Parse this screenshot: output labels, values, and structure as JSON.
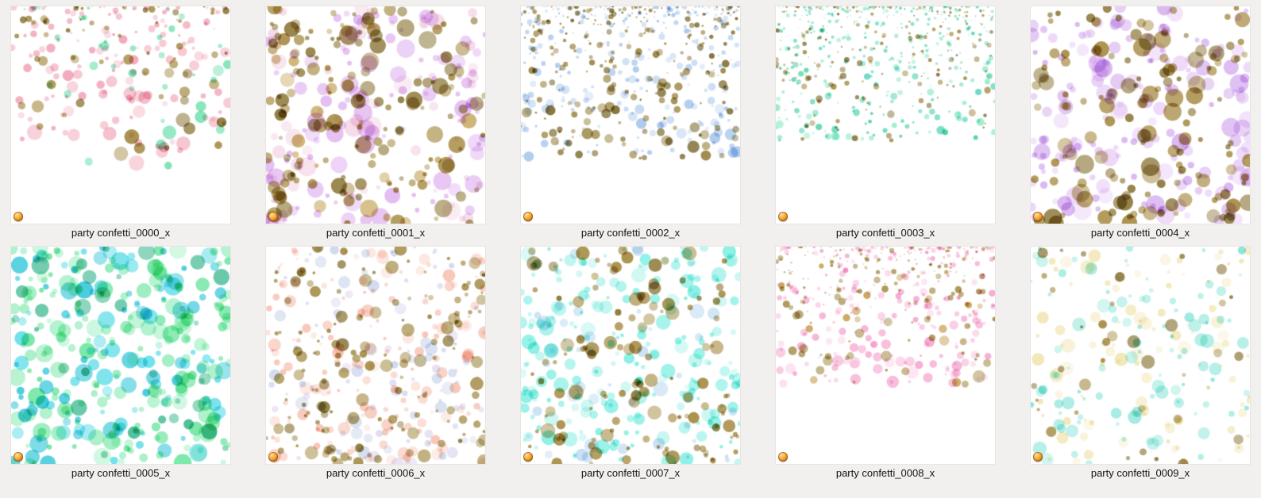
{
  "view": {
    "background_color": "#f1f0ee",
    "tile_background_color": "#ffffff",
    "label_color": "#141414"
  },
  "overlay_icon": {
    "name": "gold-bead-overlay-icon",
    "colors": [
      "#ffe2a0",
      "#f5a832",
      "#8f4a06"
    ]
  },
  "items": [
    {
      "name": "party confetti_0000_x",
      "seed": 7,
      "dist": "fade",
      "fade": 0.74,
      "count": 240,
      "min_r": 2.5,
      "max_r": 9.5,
      "colors": [
        [
          "#f0a1b4",
          4
        ],
        [
          "#f6c0cc",
          3
        ],
        [
          "#72e2b0",
          2
        ],
        [
          "#a1873e",
          2
        ],
        [
          "#8a7434",
          1
        ]
      ]
    },
    {
      "name": "party confetti_0001_x",
      "seed": 1020,
      "dist": "full",
      "fade": 1,
      "count": 330,
      "min_r": 2.5,
      "max_r": 12,
      "colors": [
        [
          "#e0b4f0",
          4
        ],
        [
          "#f4d6e6",
          2
        ],
        [
          "#a3873c",
          3
        ],
        [
          "#86702c",
          2
        ],
        [
          "#c7a85e",
          1
        ]
      ]
    },
    {
      "name": "party confetti_0002_x",
      "seed": 2033,
      "dist": "fade",
      "fade": 0.7,
      "count": 540,
      "min_r": 1.2,
      "max_r": 6.8,
      "colors": [
        [
          "#97803a",
          3
        ],
        [
          "#786628",
          2
        ],
        [
          "#a6c6ec",
          3
        ],
        [
          "#c6daf4",
          2
        ]
      ]
    },
    {
      "name": "party confetti_0003_x",
      "seed": 3046,
      "dist": "fade",
      "fade": 0.62,
      "count": 560,
      "min_r": 1.0,
      "max_r": 4.8,
      "colors": [
        [
          "#5ed8bc",
          3
        ],
        [
          "#96eccd",
          2
        ],
        [
          "#4ccf9e",
          1
        ],
        [
          "#a1873e",
          2
        ],
        [
          "#7c6a2e",
          1
        ]
      ]
    },
    {
      "name": "party confetti_0004_x",
      "seed": 4059,
      "dist": "full",
      "fade": 1,
      "count": 310,
      "min_r": 3.0,
      "max_r": 12,
      "colors": [
        [
          "#d7b0ef",
          4
        ],
        [
          "#ecd4f8",
          2
        ],
        [
          "#a3873c",
          3
        ],
        [
          "#8a7434",
          2
        ]
      ]
    },
    {
      "name": "party confetti_0005_x",
      "seed": 5072,
      "dist": "full",
      "fade": 1,
      "count": 350,
      "min_r": 3.0,
      "max_r": 11.5,
      "colors": [
        [
          "#66e49c",
          4
        ],
        [
          "#a0f0c4",
          2
        ],
        [
          "#2cc4d8",
          2
        ],
        [
          "#5adce8",
          2
        ],
        [
          "#3bb890",
          1
        ]
      ]
    },
    {
      "name": "party confetti_0006_x",
      "seed": 6085,
      "dist": "full",
      "fade": 1,
      "count": 410,
      "min_r": 1.8,
      "max_r": 8.5,
      "colors": [
        [
          "#f6bfae",
          3
        ],
        [
          "#fbdcd2",
          2
        ],
        [
          "#a0883e",
          3
        ],
        [
          "#83702e",
          1
        ],
        [
          "#ccd6ee",
          2
        ],
        [
          "#ded8f0",
          1
        ]
      ]
    },
    {
      "name": "party confetti_0007_x",
      "seed": 7098,
      "dist": "full",
      "fade": 1,
      "count": 390,
      "min_r": 2.2,
      "max_r": 9.5,
      "colors": [
        [
          "#7ceee2",
          4
        ],
        [
          "#b8f4ee",
          2
        ],
        [
          "#a3873c",
          3
        ],
        [
          "#86702c",
          1
        ],
        [
          "#c2dcf2",
          1
        ]
      ]
    },
    {
      "name": "party confetti_0008_x",
      "seed": 8111,
      "dist": "fade",
      "fade": 0.64,
      "count": 450,
      "min_r": 1.3,
      "max_r": 6.8,
      "colors": [
        [
          "#f5a6d0",
          4
        ],
        [
          "#fbd2e8",
          2
        ],
        [
          "#a1873e",
          2
        ],
        [
          "#c59e52",
          1
        ]
      ]
    },
    {
      "name": "party confetti_0009_x",
      "seed": 9124,
      "dist": "full",
      "fade": 1,
      "count": 235,
      "min_r": 2.0,
      "max_r": 9.0,
      "colors": [
        [
          "#f0e4ae",
          3
        ],
        [
          "#f8f0d2",
          2
        ],
        [
          "#a6ece2",
          3
        ],
        [
          "#74e0d4",
          1
        ],
        [
          "#a1873e",
          1
        ],
        [
          "#8a7434",
          1
        ]
      ]
    }
  ]
}
